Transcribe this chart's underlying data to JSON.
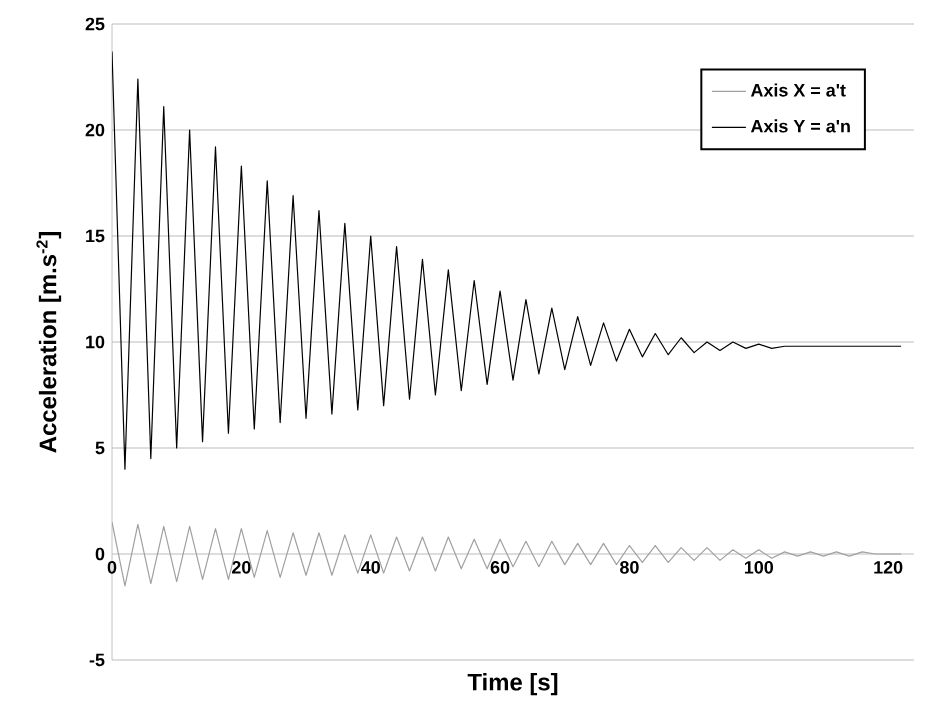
{
  "chart_data": {
    "type": "line",
    "xlabel": "Time [s]",
    "ylabel": "Acceleration [m.s$^{-2}$]",
    "x": [
      0,
      2,
      4,
      6,
      8,
      10,
      12,
      14,
      16,
      18,
      20,
      22,
      24,
      26,
      28,
      30,
      32,
      34,
      36,
      38,
      40,
      42,
      44,
      46,
      48,
      50,
      52,
      54,
      56,
      58,
      60,
      62,
      64,
      66,
      68,
      70,
      72,
      74,
      76,
      78,
      80,
      82,
      84,
      86,
      88,
      90,
      92,
      94,
      96,
      98,
      100,
      102,
      104,
      106,
      108,
      110,
      112,
      114,
      116,
      118,
      120,
      122
    ],
    "series": [
      {
        "name": "Axis X = a't",
        "color": "#a0a0a0",
        "values": [
          1.5,
          -1.5,
          1.4,
          -1.4,
          1.3,
          -1.3,
          1.3,
          -1.2,
          1.2,
          -1.2,
          1.2,
          -1.1,
          1.1,
          -1.1,
          1.0,
          -1.0,
          1.0,
          -1.0,
          0.9,
          -0.9,
          0.9,
          -0.9,
          0.8,
          -0.8,
          0.8,
          -0.8,
          0.8,
          -0.7,
          0.7,
          -0.7,
          0.7,
          -0.6,
          0.6,
          -0.6,
          0.6,
          -0.5,
          0.5,
          -0.5,
          0.5,
          -0.5,
          0.4,
          -0.4,
          0.4,
          -0.4,
          0.3,
          -0.3,
          0.3,
          -0.3,
          0.2,
          -0.2,
          0.2,
          -0.2,
          0.1,
          -0.1,
          0.1,
          -0.1,
          0.1,
          -0.1,
          0.1,
          0,
          0,
          0
        ]
      },
      {
        "name": "Axis Y = a'n",
        "color": "#000000",
        "values": [
          23.7,
          4.0,
          22.4,
          4.5,
          21.1,
          5.0,
          20.0,
          5.3,
          19.2,
          5.7,
          18.3,
          5.9,
          17.6,
          6.2,
          16.9,
          6.4,
          16.2,
          6.6,
          15.6,
          6.8,
          15.0,
          7.0,
          14.5,
          7.3,
          13.9,
          7.5,
          13.4,
          7.7,
          12.9,
          8.0,
          12.4,
          8.2,
          12.0,
          8.5,
          11.6,
          8.7,
          11.2,
          8.9,
          10.9,
          9.1,
          10.6,
          9.3,
          10.4,
          9.4,
          10.2,
          9.5,
          10.0,
          9.6,
          10.0,
          9.7,
          9.9,
          9.7,
          9.8,
          9.8,
          9.8,
          9.8,
          9.8,
          9.8,
          9.8,
          9.8,
          9.8,
          9.8
        ]
      }
    ],
    "xlim": [
      0,
      124
    ],
    "xticks": [
      0,
      20,
      40,
      60,
      80,
      100,
      120
    ],
    "ylim": [
      -5,
      25
    ],
    "yticks": [
      -5,
      0,
      5,
      10,
      15,
      20,
      25
    ],
    "grid": "y",
    "legend": "top right",
    "marker": "none",
    "line_style": "solid"
  }
}
